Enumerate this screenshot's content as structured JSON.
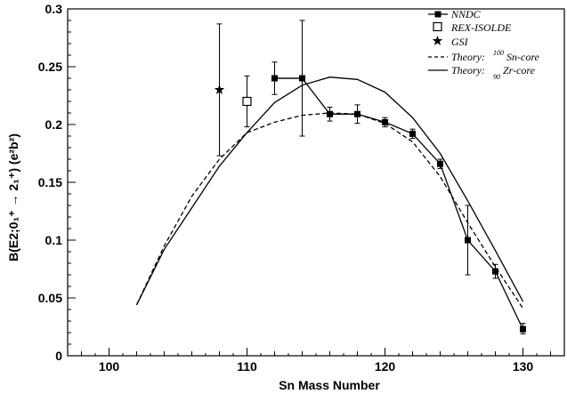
{
  "chart_data": {
    "type": "scatter",
    "xlabel": "Sn Mass Number",
    "ylabel": "B(E2;0₁⁺ → 2₁⁺)  (e²b²)",
    "xlim": [
      97,
      133
    ],
    "ylim": [
      0,
      0.3
    ],
    "x_ticks": [
      "100",
      "110",
      "120",
      "130"
    ],
    "y_ticks": [
      "0",
      "0.05",
      "0.1",
      "0.15",
      "0.2",
      "0.25",
      "0.3"
    ],
    "legend_position": "top-right",
    "series": [
      {
        "name": "NNDC",
        "marker": "filled-square",
        "connected": true,
        "points": [
          {
            "x": 112,
            "y": 0.24,
            "ylo": 0.226,
            "yhi": 0.254,
            "xlo": 112,
            "xhi": 114
          },
          {
            "x": 114,
            "y": 0.24,
            "ylo": 0.19,
            "yhi": 0.29
          },
          {
            "x": 116,
            "y": 0.209,
            "ylo": 0.203,
            "yhi": 0.215
          },
          {
            "x": 118,
            "y": 0.209,
            "ylo": 0.201,
            "yhi": 0.217
          },
          {
            "x": 120,
            "y": 0.202,
            "ylo": 0.198,
            "yhi": 0.206
          },
          {
            "x": 122,
            "y": 0.192,
            "ylo": 0.188,
            "yhi": 0.196
          },
          {
            "x": 124,
            "y": 0.166,
            "ylo": 0.162,
            "yhi": 0.17
          },
          {
            "x": 126,
            "y": 0.1,
            "ylo": 0.07,
            "yhi": 0.13
          },
          {
            "x": 128,
            "y": 0.073,
            "ylo": 0.067,
            "yhi": 0.079
          },
          {
            "x": 130,
            "y": 0.023,
            "ylo": 0.019,
            "yhi": 0.028
          }
        ]
      },
      {
        "name": "REX-ISOLDE",
        "marker": "open-square",
        "points": [
          {
            "x": 110,
            "y": 0.22,
            "ylo": 0.198,
            "yhi": 0.242
          }
        ]
      },
      {
        "name": "GSI",
        "marker": "star",
        "points": [
          {
            "x": 108,
            "y": 0.23,
            "ylo": 0.173,
            "yhi": 0.287
          }
        ]
      },
      {
        "name": "Theory: ¹⁰⁰Sn-core",
        "line": "dashed",
        "x": [
          102,
          104,
          106,
          108,
          110,
          112,
          114,
          116,
          118,
          120,
          122,
          124,
          126,
          128,
          130
        ],
        "y": [
          0.044,
          0.095,
          0.138,
          0.17,
          0.193,
          0.202,
          0.208,
          0.21,
          0.209,
          0.201,
          0.185,
          0.155,
          0.115,
          0.077,
          0.041
        ]
      },
      {
        "name": "Theory: ⁹⁰Zr-core",
        "line": "solid",
        "x": [
          102,
          104,
          106,
          108,
          110,
          112,
          114,
          116,
          118,
          120,
          122,
          124,
          126,
          128,
          130
        ],
        "y": [
          0.044,
          0.092,
          0.128,
          0.164,
          0.193,
          0.219,
          0.234,
          0.241,
          0.239,
          0.228,
          0.206,
          0.175,
          0.134,
          0.091,
          0.047
        ]
      }
    ],
    "legend": {
      "nndc": "NNDC",
      "rex": "REX-ISOLDE",
      "gsi": "GSI",
      "theory_prefix": "Theory:",
      "sn_sup": "100",
      "sn_core": "Sn-core",
      "zr_sup": "90",
      "zr_core": "Zr-core"
    }
  }
}
